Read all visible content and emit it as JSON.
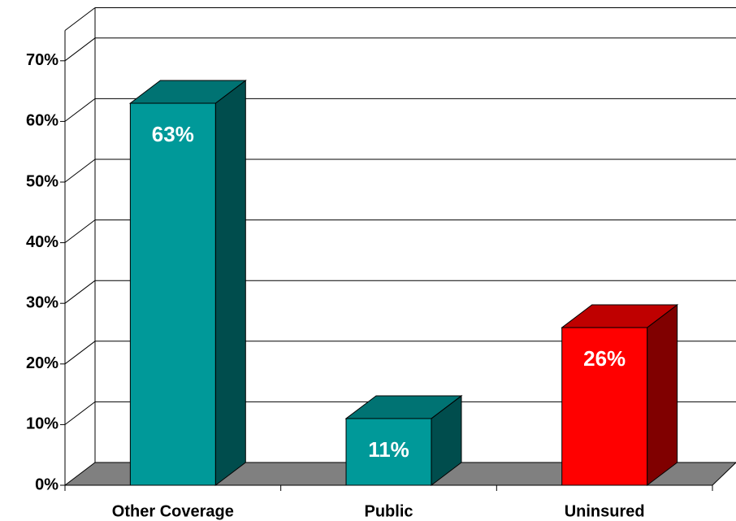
{
  "chart_data": {
    "type": "bar3d",
    "categories": [
      "Other Coverage",
      "Public",
      "Uninsured"
    ],
    "values": [
      63,
      11,
      26
    ],
    "value_labels": [
      "63%",
      "11%",
      "26%"
    ],
    "colors": [
      "#009999",
      "#009999",
      "#ff0000"
    ],
    "ylim": [
      0,
      75
    ],
    "yticks": [
      {
        "value": 0,
        "label": "0%"
      },
      {
        "value": 10,
        "label": "10%"
      },
      {
        "value": 20,
        "label": "20%"
      },
      {
        "value": 30,
        "label": "30%"
      },
      {
        "value": 40,
        "label": "40%"
      },
      {
        "value": 50,
        "label": "50%"
      },
      {
        "value": 60,
        "label": "60%"
      },
      {
        "value": 70,
        "label": "70%"
      }
    ],
    "grid": true
  }
}
